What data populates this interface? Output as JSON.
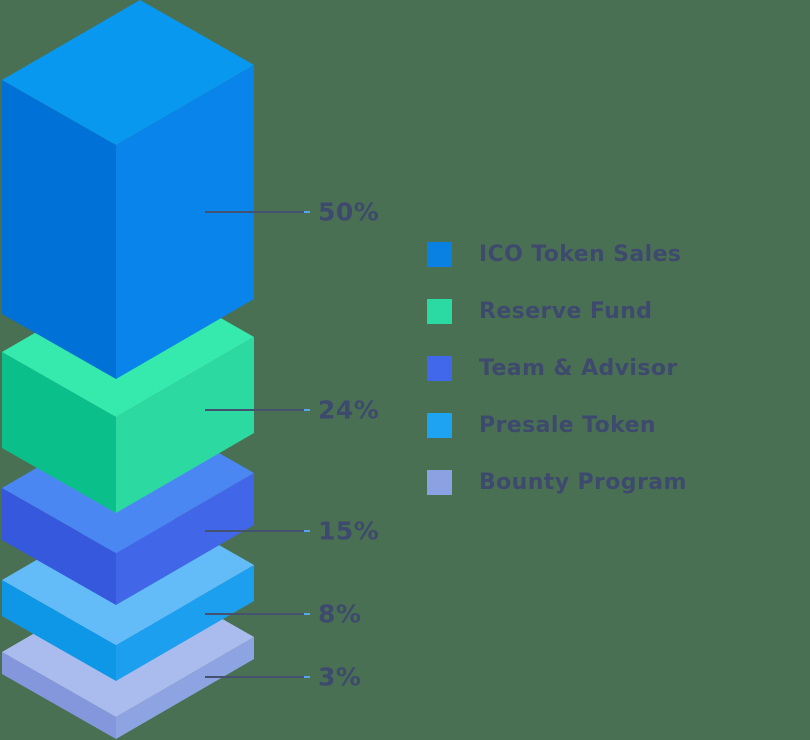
{
  "background_color": "#4a7053",
  "text_color": "#3e4a6d",
  "callout_line_color": "#44516f",
  "callout_tip_color": "#56a5ef",
  "chart_data": {
    "type": "bar",
    "variant": "isometric-3d-stacked",
    "title": "",
    "legend_position": "right",
    "grid": false,
    "unit": "%",
    "categories": [
      "ICO Token Sales",
      "Reserve Fund",
      "Team & Advisor",
      "Presale Token",
      "Bounty Program"
    ],
    "values": [
      50,
      24,
      15,
      8,
      3
    ],
    "segments": [
      {
        "label": "ICO Token Sales",
        "value": 50,
        "display": "50%",
        "colors": {
          "top": "#0998ef",
          "left": "#0071d6",
          "right": "#0884ea",
          "legend": "#0981e2"
        }
      },
      {
        "label": "Reserve Fund",
        "value": 24,
        "display": "24%",
        "colors": {
          "top": "#36e9ad",
          "left": "#0bbf8b",
          "right": "#2cd9a0",
          "legend": "#2bd9a2"
        }
      },
      {
        "label": "Team & Advisor",
        "value": 15,
        "display": "15%",
        "colors": {
          "top": "#4b87f2",
          "left": "#3558dd",
          "right": "#4166e8",
          "legend": "#4168ea"
        }
      },
      {
        "label": "Presale Token",
        "value": 8,
        "display": "8%",
        "colors": {
          "top": "#63bcf8",
          "left": "#0d97e6",
          "right": "#1d9ff0",
          "legend": "#1ea2f2"
        }
      },
      {
        "label": "Bounty Program",
        "value": 3,
        "display": "3%",
        "colors": {
          "top": "#aabbee",
          "left": "#8497dc",
          "right": "#8ea4e2",
          "legend": "#8ba1e2"
        }
      }
    ]
  }
}
